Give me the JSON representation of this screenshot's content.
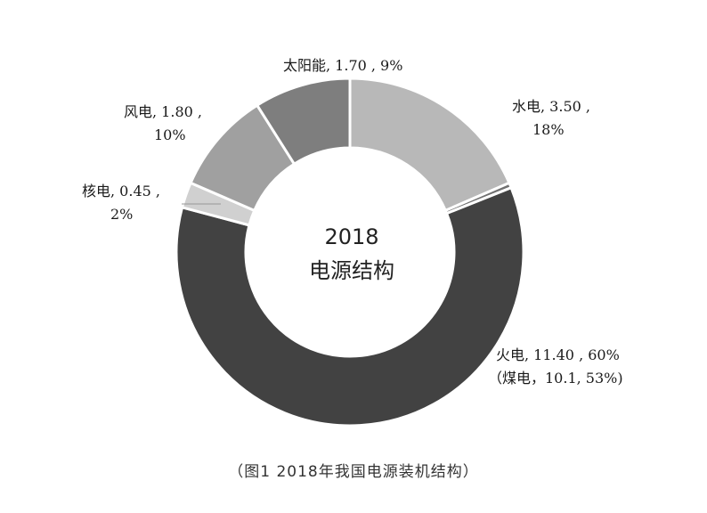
{
  "chart_data": {
    "type": "pie",
    "donut": true,
    "center_label": [
      "2018",
      "电源结构"
    ],
    "slices": [
      {
        "name": "水电",
        "value": 3.5,
        "percent": 18,
        "color": "#b8b8b8"
      },
      {
        "name": "other",
        "value": 0.09,
        "percent": 0.5,
        "color": "#707070"
      },
      {
        "name": "火电",
        "value": 11.4,
        "percent": 60,
        "color": "#424242"
      },
      {
        "name": "核电",
        "value": 0.45,
        "percent": 2,
        "color": "#d0d0d0"
      },
      {
        "name": "风电",
        "value": 1.8,
        "percent": 10,
        "color": "#a0a0a0"
      },
      {
        "name": "太阳能",
        "value": 1.7,
        "percent": 9,
        "color": "#7e7e7e"
      }
    ]
  },
  "labels": {
    "solar": "太阳能, 1.70 , 9%",
    "hydro_1": "水电, 3.50 ,",
    "hydro_2": "18%",
    "wind_1": "风电, 1.80 ,",
    "wind_2": "10%",
    "nuclear_1": "核电, 0.45 ,",
    "nuclear_2": "2%",
    "thermal_1": "火电, 11.40 , 60%",
    "thermal_2": "（煤电，10.1, 53%)"
  },
  "caption": "（图1 2018年我国电源装机结构）"
}
